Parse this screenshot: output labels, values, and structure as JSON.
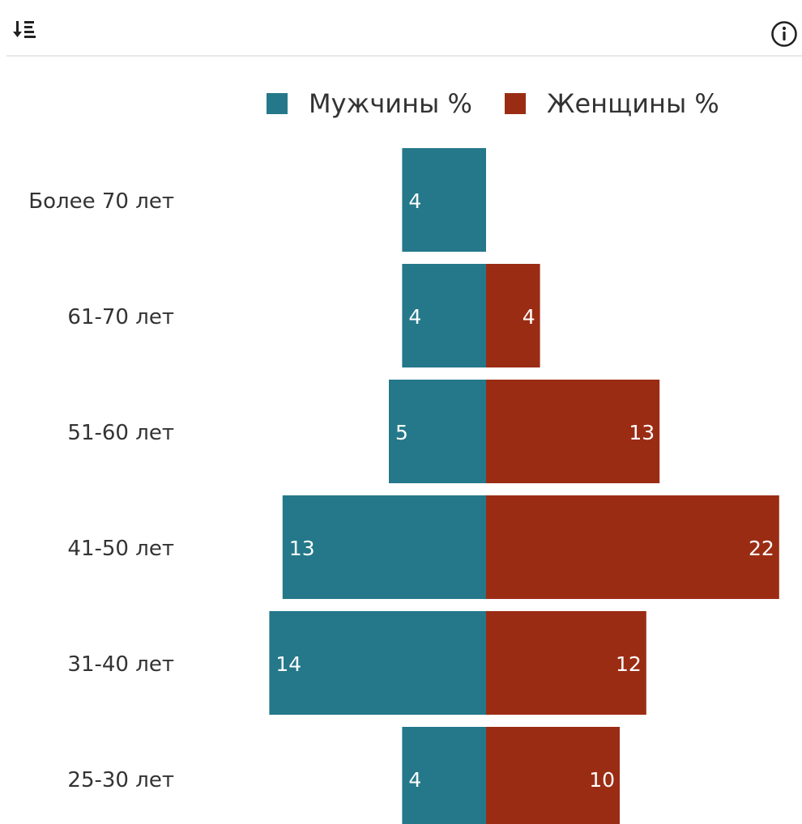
{
  "toolbar": {
    "sort_icon": "sort-descending-icon",
    "info_icon": "info-icon"
  },
  "chart_data": {
    "type": "bar",
    "orientation": "horizontal",
    "layout": "diverging",
    "categories": [
      "Более 70 лет",
      "61-70 лет",
      "51-60 лет",
      "41-50 лет",
      "31-40 лет",
      "25-30 лет"
    ],
    "series": [
      {
        "name": "Мужчины %",
        "color": "#24788a",
        "values": [
          4,
          4,
          5,
          13,
          14,
          4
        ]
      },
      {
        "name": "Женщины %",
        "color": "#9b2c14",
        "values": [
          0,
          4,
          13,
          22,
          12,
          10
        ]
      }
    ],
    "legend_position": "top",
    "grid": false
  }
}
